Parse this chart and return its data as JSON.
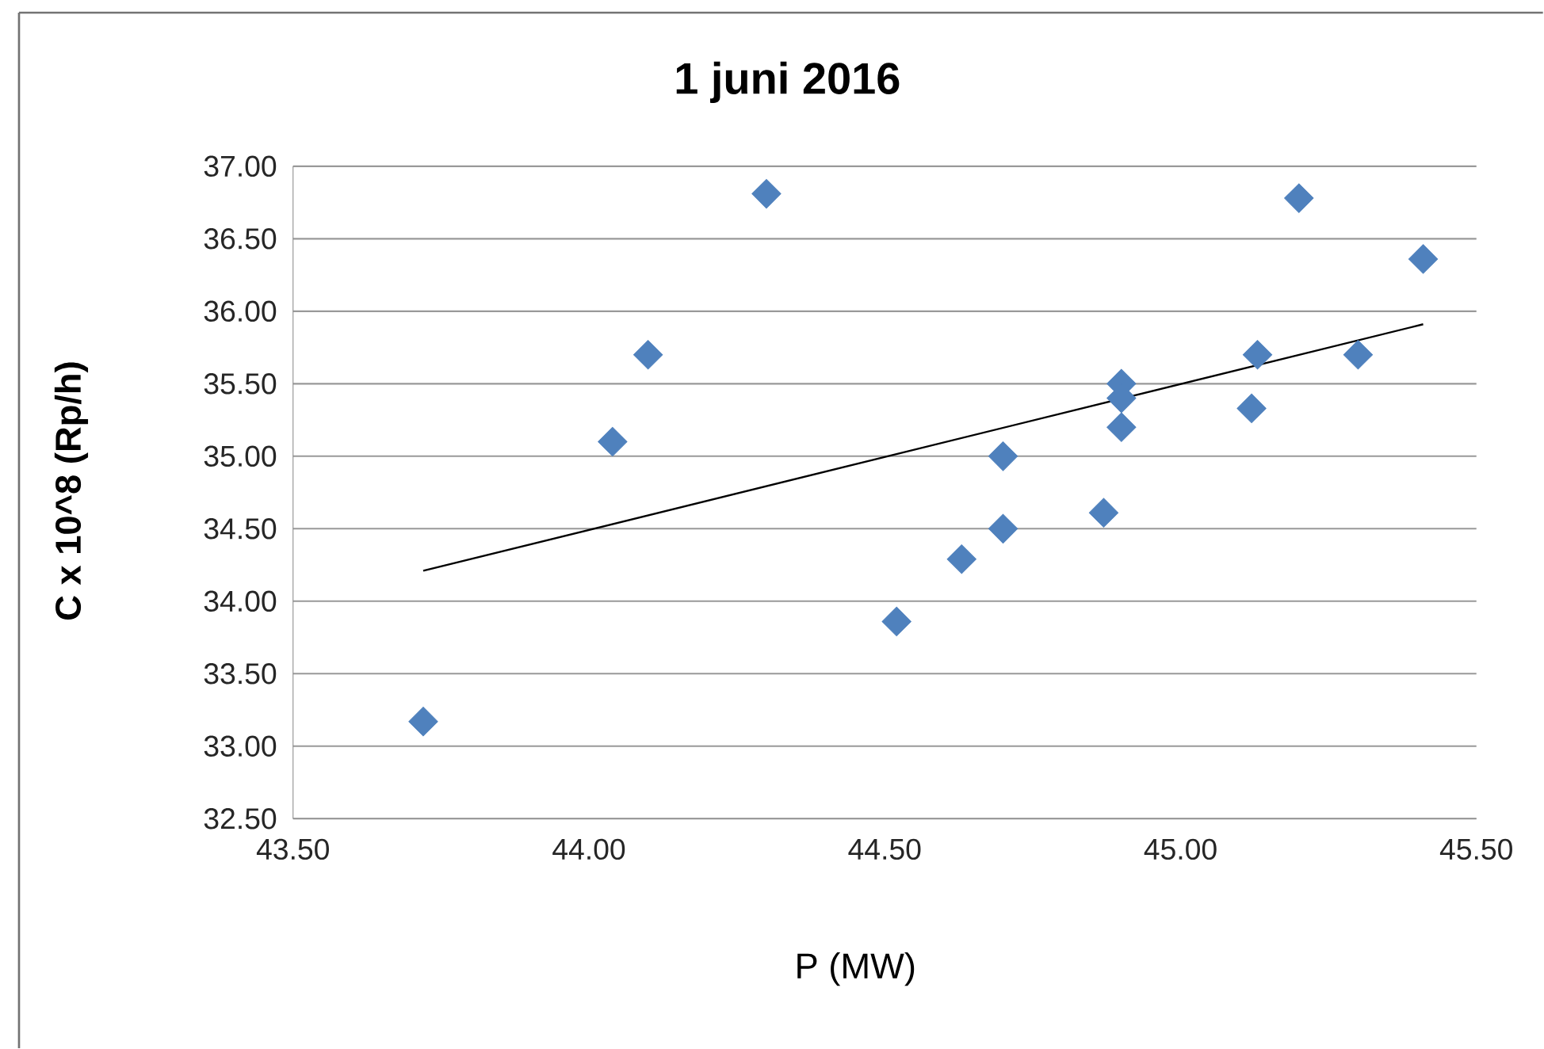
{
  "chart_data": {
    "type": "scatter",
    "title": "1 juni 2016",
    "xlabel": "P (MW)",
    "ylabel": "C x 10^8 (Rp/h)",
    "xlim": [
      43.5,
      45.5
    ],
    "xticks": [
      {
        "value": 43.5,
        "label": "43.50"
      },
      {
        "value": 44.0,
        "label": "44.00"
      },
      {
        "value": 44.5,
        "label": "44.50"
      },
      {
        "value": 45.0,
        "label": "45.00"
      },
      {
        "value": 45.5,
        "label": "45.50"
      }
    ],
    "ylim": [
      32.5,
      37.0
    ],
    "yticks": [
      {
        "value": 32.5,
        "label": "32.50"
      },
      {
        "value": 33.0,
        "label": "33.00"
      },
      {
        "value": 33.5,
        "label": "33.50"
      },
      {
        "value": 34.0,
        "label": "34.00"
      },
      {
        "value": 34.5,
        "label": "34.50"
      },
      {
        "value": 35.0,
        "label": "35.00"
      },
      {
        "value": 35.5,
        "label": "35.50"
      },
      {
        "value": 36.0,
        "label": "36.00"
      },
      {
        "value": 36.5,
        "label": "36.50"
      },
      {
        "value": 37.0,
        "label": "37.00"
      }
    ],
    "grid": "y",
    "marker": "diamond",
    "series": [
      {
        "color": "#4f81bd",
        "x": [
          43.72,
          44.04,
          44.1,
          44.3,
          44.52,
          44.63,
          44.7,
          44.7,
          44.87,
          44.9,
          44.9,
          44.9,
          45.12,
          45.13,
          45.2,
          45.3,
          45.41
        ],
        "values": [
          33.17,
          35.1,
          35.7,
          36.81,
          33.86,
          34.29,
          34.5,
          35.0,
          34.61,
          35.5,
          35.4,
          35.2,
          35.33,
          35.7,
          36.78,
          35.7,
          36.36
        ]
      },
      {
        "type": "line",
        "color": "#000000",
        "marker": "none",
        "line_style": "solid",
        "x": [
          43.72,
          45.41
        ],
        "values": [
          34.21,
          35.91
        ]
      }
    ]
  }
}
